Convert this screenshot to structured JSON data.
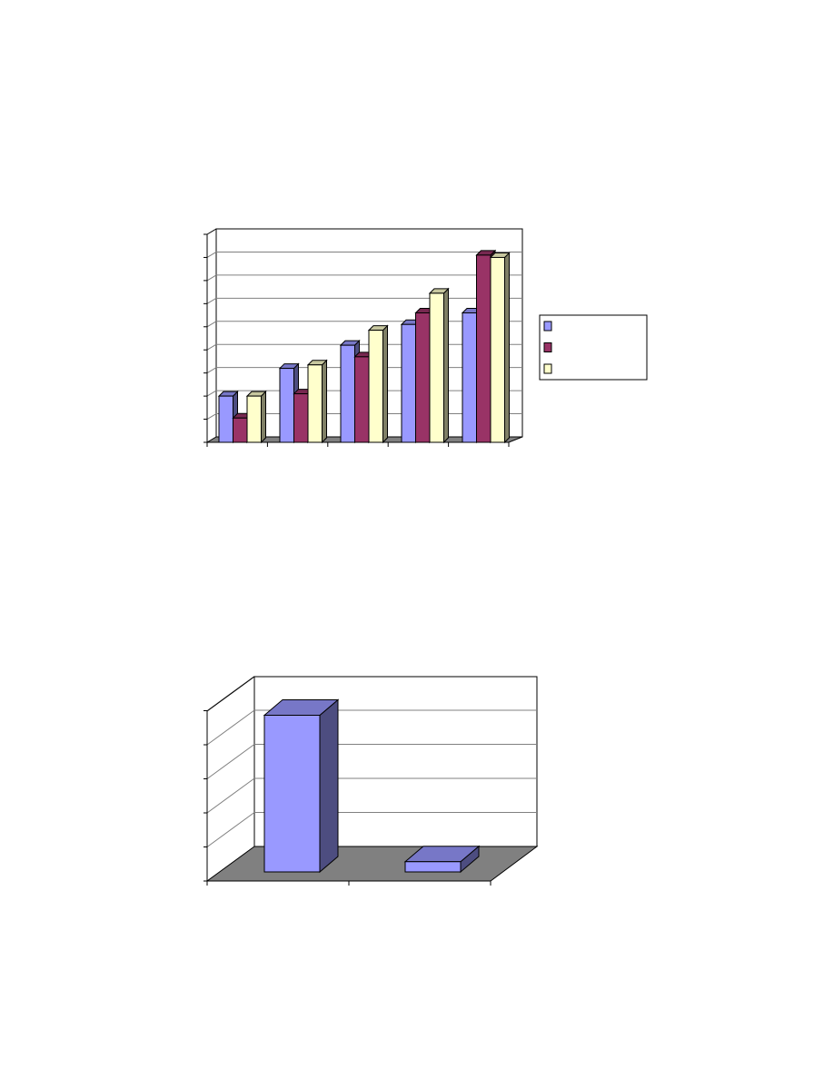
{
  "chart_data": [
    {
      "type": "bar",
      "style": "3d-clustered-column",
      "title": "",
      "xlabel": "",
      "ylabel": "",
      "categories": [
        "",
        "",
        "",
        "",
        ""
      ],
      "series": [
        {
          "values": [
            2.0,
            3.2,
            4.2,
            5.1,
            5.6
          ],
          "color": "#9999ff"
        },
        {
          "values": [
            1.05,
            2.1,
            3.7,
            5.6,
            8.1
          ],
          "color": "#993366"
        },
        {
          "values": [
            2.0,
            3.35,
            4.85,
            6.45,
            8.0
          ],
          "color": "#ffffcc"
        }
      ],
      "ylim": [
        0,
        9
      ],
      "grid": true,
      "legend": "right",
      "legend_entries": [
        "",
        "",
        ""
      ],
      "floor_color": "#808080"
    },
    {
      "type": "bar",
      "style": "3d-column",
      "title": "",
      "xlabel": "",
      "ylabel": "",
      "categories": [
        "",
        ""
      ],
      "series": [
        {
          "values": [
            4.6,
            0.3
          ],
          "color": "#9999ff"
        }
      ],
      "ylim": [
        0,
        5
      ],
      "grid": true,
      "legend": "none",
      "floor_color": "#808080"
    }
  ]
}
